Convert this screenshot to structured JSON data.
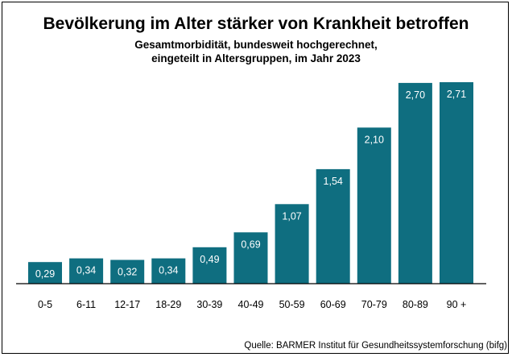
{
  "chart_data": {
    "type": "bar",
    "title": "Bevölkerung im Alter stärker von Krankheit betroffen",
    "subtitle": [
      "Gesamtmorbidität, bundesweit hochgerechnet,",
      "eingeteilt in Altersgruppen, im Jahr 2023"
    ],
    "categories": [
      "0-5",
      "6-11",
      "12-17",
      "18-29",
      "30-39",
      "40-49",
      "50-59",
      "60-69",
      "70-79",
      "80-89",
      "90 +"
    ],
    "values": [
      0.29,
      0.34,
      0.32,
      0.34,
      0.49,
      0.69,
      1.07,
      1.54,
      2.1,
      2.7,
      2.71
    ],
    "value_labels": [
      "0,29",
      "0,34",
      "0,32",
      "0,34",
      "0,49",
      "0,69",
      "1,07",
      "1,54",
      "2,10",
      "2,70",
      "2,71"
    ],
    "xlabel": "",
    "ylabel": "",
    "ylim": [
      0,
      2.71
    ],
    "grid": false,
    "bar_color": "#0f6e80",
    "label_color": "#ffffff",
    "source": "Quelle: BARMER Institut für Gesundheitssystemforschung (bifg)"
  }
}
